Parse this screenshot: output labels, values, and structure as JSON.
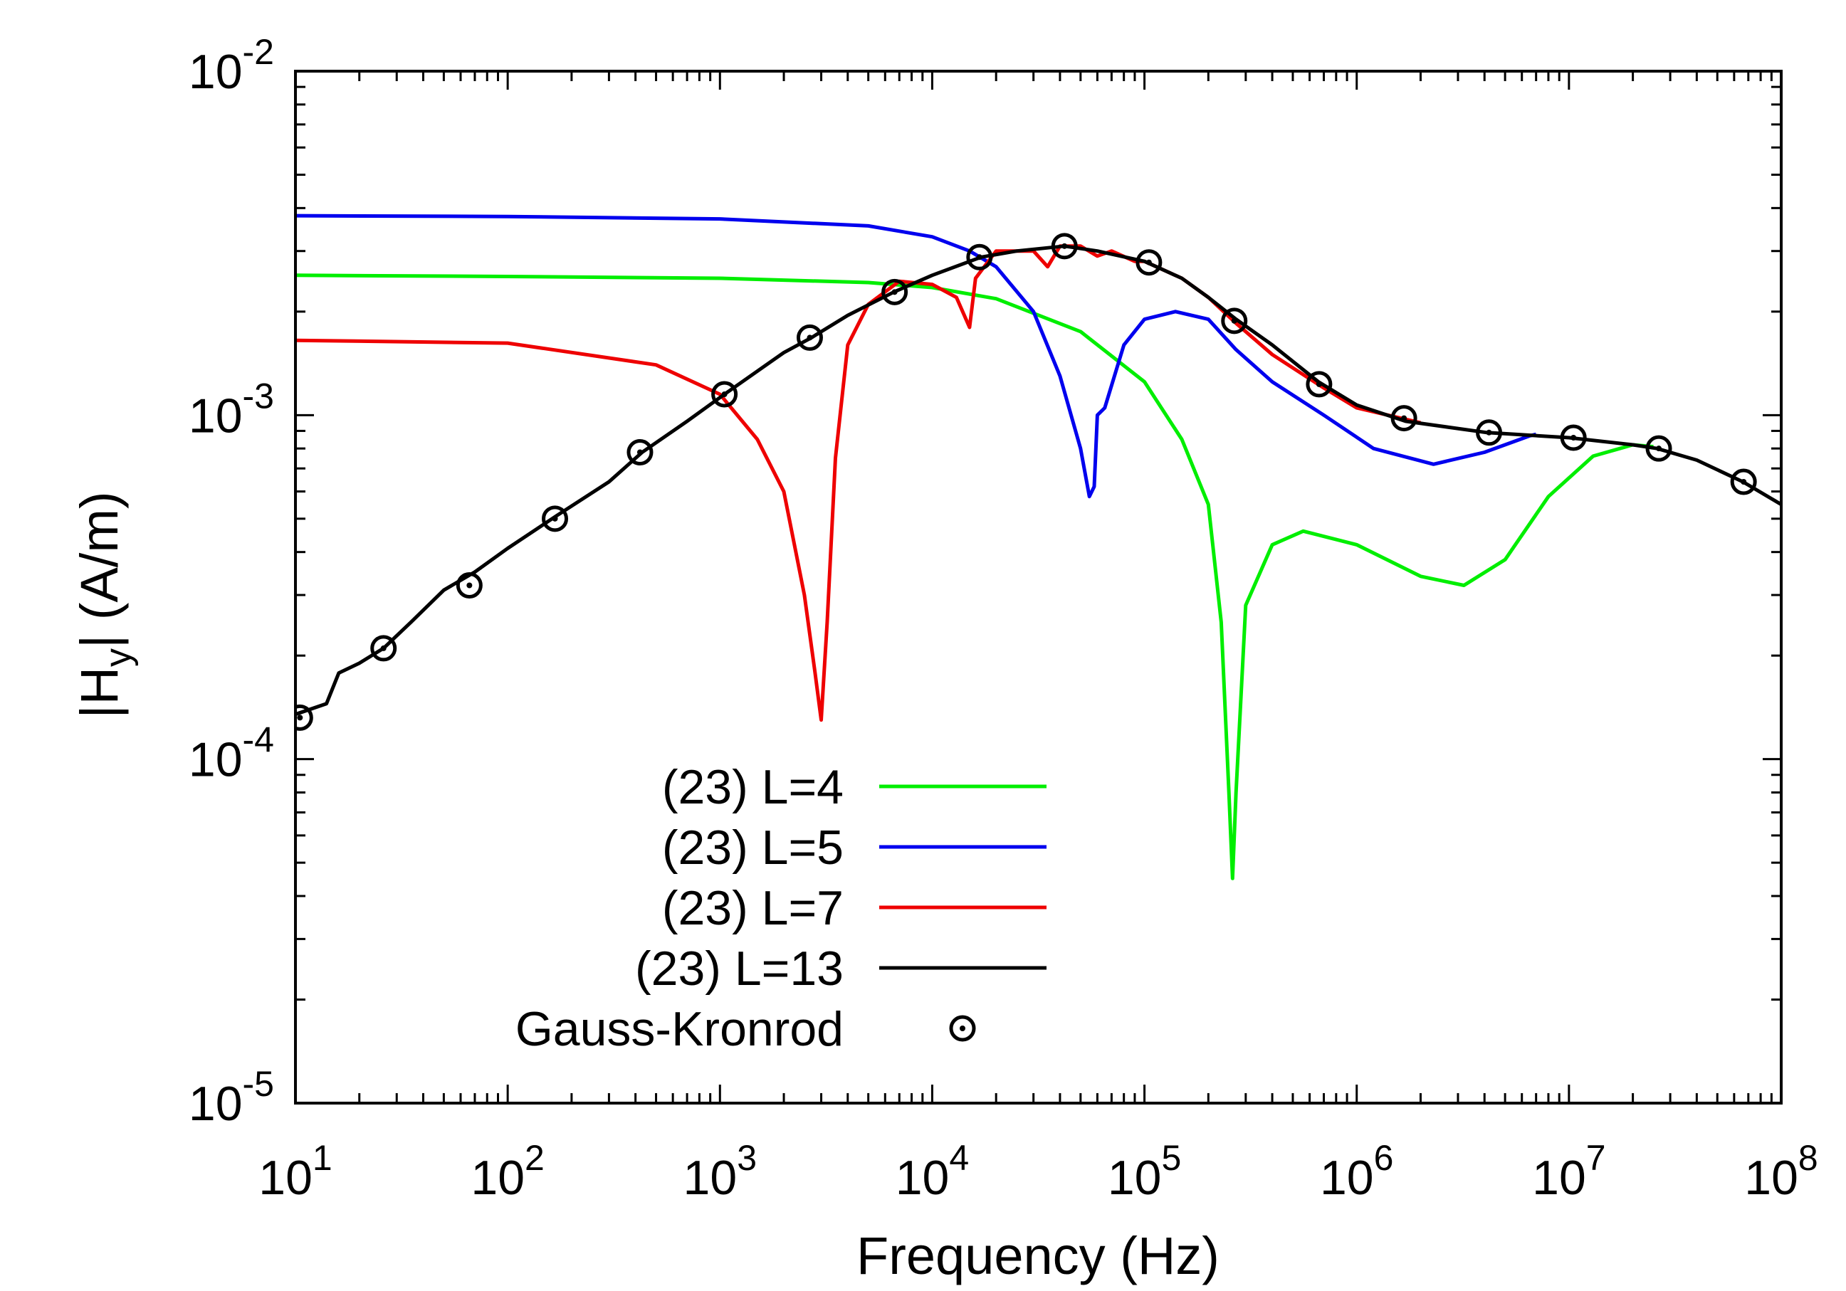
{
  "chart_data": {
    "type": "line",
    "xlabel": "Frequency (Hz)",
    "ylabel_main": "|H",
    "ylabel_sub": "y",
    "ylabel_rest": "|  (A/m)",
    "xscale": "log",
    "yscale": "log",
    "xlim": [
      10,
      100000000
    ],
    "ylim": [
      1e-05,
      0.01
    ],
    "grid": false,
    "legend_position": "bottom-center",
    "x_ticks": [
      {
        "base": "10",
        "exp": "1",
        "value": 10
      },
      {
        "base": "10",
        "exp": "2",
        "value": 100
      },
      {
        "base": "10",
        "exp": "3",
        "value": 1000
      },
      {
        "base": "10",
        "exp": "4",
        "value": 10000
      },
      {
        "base": "10",
        "exp": "5",
        "value": 100000
      },
      {
        "base": "10",
        "exp": "6",
        "value": 1000000
      },
      {
        "base": "10",
        "exp": "7",
        "value": 10000000
      },
      {
        "base": "10",
        "exp": "8",
        "value": 100000000
      }
    ],
    "y_ticks": [
      {
        "base": "10",
        "exp": "-5",
        "value": 1e-05
      },
      {
        "base": "10",
        "exp": "-4",
        "value": 0.0001
      },
      {
        "base": "10",
        "exp": "-3",
        "value": 0.001
      },
      {
        "base": "10",
        "exp": "-2",
        "value": 0.01
      }
    ],
    "series": [
      {
        "name": "(23)  L=4",
        "color": "#00ee00",
        "style": "line",
        "x": [
          10,
          100,
          1000,
          5000,
          10000,
          20000,
          50000,
          100000,
          150000,
          200000,
          230000,
          250000,
          260000,
          270000,
          300000,
          400000,
          560000,
          1000000,
          2000000,
          3200000,
          5000000,
          8000000,
          13000000,
          20000000,
          25000000
        ],
        "y": [
          0.00255,
          0.00253,
          0.0025,
          0.00243,
          0.00235,
          0.00218,
          0.00175,
          0.00125,
          0.00085,
          0.00055,
          0.00025,
          8e-05,
          4.5e-05,
          8e-05,
          0.00028,
          0.00042,
          0.00046,
          0.00042,
          0.00034,
          0.00032,
          0.00038,
          0.00058,
          0.00076,
          0.00082,
          0.00081
        ]
      },
      {
        "name": "(23)  L=5",
        "color": "#0000ee",
        "style": "line",
        "x": [
          10,
          100,
          1000,
          5000,
          10000,
          15000,
          20000,
          30000,
          40000,
          50000,
          55000,
          58000,
          60000,
          65000,
          80000,
          100000,
          140000,
          200000,
          270000,
          400000,
          700000,
          1200000,
          2300000,
          4000000,
          6500000,
          7000000
        ],
        "y": [
          0.0038,
          0.00378,
          0.00372,
          0.00355,
          0.0033,
          0.003,
          0.0027,
          0.002,
          0.0013,
          0.0008,
          0.00058,
          0.00062,
          0.001,
          0.00105,
          0.0016,
          0.0019,
          0.002,
          0.0019,
          0.00155,
          0.00125,
          0.001,
          0.0008,
          0.00072,
          0.00078,
          0.00087,
          0.00088
        ]
      },
      {
        "name": "(23)  L=7",
        "color": "#ee0000",
        "style": "line",
        "x": [
          10,
          100,
          500,
          1000,
          1500,
          2000,
          2500,
          2800,
          3000,
          3200,
          3500,
          4000,
          5000,
          7000,
          10000,
          13000,
          15000,
          16000,
          20000,
          30000,
          35000,
          40000,
          50000,
          60000,
          70000,
          90000,
          100000,
          150000,
          200000,
          270000,
          400000,
          700000,
          1000000,
          2000000
        ],
        "y": [
          0.00165,
          0.00162,
          0.0014,
          0.00115,
          0.00085,
          0.0006,
          0.0003,
          0.00018,
          0.00013,
          0.00025,
          0.00075,
          0.0016,
          0.0021,
          0.00245,
          0.0024,
          0.0022,
          0.0018,
          0.0025,
          0.003,
          0.003,
          0.0027,
          0.0031,
          0.0031,
          0.0029,
          0.003,
          0.0028,
          0.0028,
          0.0025,
          0.0022,
          0.00185,
          0.0015,
          0.0012,
          0.00105,
          0.00095
        ]
      },
      {
        "name": "(23)  L=13",
        "color": "#000000",
        "style": "line",
        "x": [
          10,
          14,
          16,
          20,
          26,
          35,
          50,
          70,
          100,
          170,
          300,
          430,
          700,
          1050,
          2000,
          2700,
          4000,
          6600,
          10000,
          17000,
          25000,
          42000,
          60000,
          100000,
          150000,
          200000,
          270000,
          400000,
          660000,
          1000000,
          1700000,
          4100000,
          10000000,
          20000000,
          26000000,
          40000000,
          66000000,
          100000000
        ],
        "y": [
          0.000135,
          0.000145,
          0.000178,
          0.00019,
          0.00021,
          0.00025,
          0.00031,
          0.00035,
          0.00041,
          0.00051,
          0.00064,
          0.00078,
          0.00096,
          0.00115,
          0.00152,
          0.00168,
          0.00195,
          0.00228,
          0.00255,
          0.00288,
          0.003,
          0.0031,
          0.003,
          0.0028,
          0.0025,
          0.0022,
          0.0019,
          0.0016,
          0.00125,
          0.00107,
          0.00096,
          0.00089,
          0.00086,
          0.00082,
          0.0008,
          0.00074,
          0.00064,
          0.00055
        ]
      },
      {
        "name": "Gauss-Kronrod",
        "color": "#000000",
        "style": "marker",
        "x": [
          10.5,
          26,
          66,
          167,
          420,
          1050,
          2650,
          6650,
          16700,
          42000,
          105000,
          265000,
          665000,
          1670000,
          4200000,
          10500000,
          26500000,
          66500000
        ],
        "y": [
          0.000132,
          0.00021,
          0.00032,
          0.0005,
          0.00078,
          0.00115,
          0.00168,
          0.00228,
          0.00288,
          0.0031,
          0.00278,
          0.00188,
          0.00123,
          0.00098,
          0.00089,
          0.00086,
          0.0008,
          0.00064
        ]
      }
    ]
  }
}
